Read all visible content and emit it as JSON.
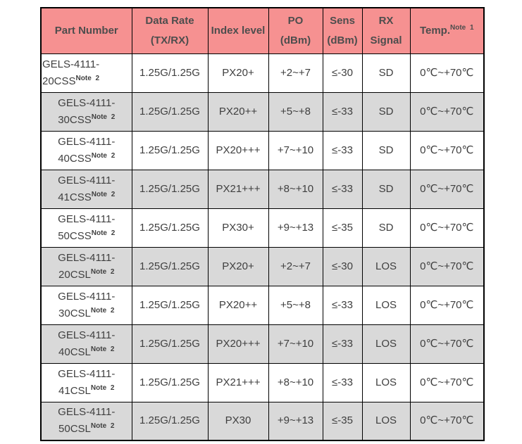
{
  "table": {
    "colors": {
      "header_bg": "#f69191",
      "header_text": "#4d4d4d",
      "row_bg": "#ffffff",
      "row_alt_bg": "#d9d9d9",
      "cell_text": "#3f3f3f",
      "grid_border": "#000000"
    },
    "columns": [
      {
        "key": "part",
        "line1": "Part Number",
        "line2": ""
      },
      {
        "key": "rate",
        "line1": "Data Rate",
        "line2": "(TX/RX)"
      },
      {
        "key": "index",
        "line1": "Index level",
        "line2": ""
      },
      {
        "key": "po",
        "line1": "PO",
        "line2": "(dBm)"
      },
      {
        "key": "sens",
        "line1": "Sens",
        "line2": "(dBm)"
      },
      {
        "key": "rx",
        "line1": "RX",
        "line2": "Signal"
      },
      {
        "key": "temp",
        "line1": "Temp.",
        "superscript": "Note 1"
      }
    ],
    "rows": [
      {
        "part_line1": "GELS-4111-",
        "part_line2": "20CSS",
        "part_superscript": "Note 2",
        "rate": "1.25G/1.25G",
        "index": "PX20+",
        "po": "+2~+7",
        "sens": "≤-30",
        "rx": "SD",
        "temp": "0℃~+70℃",
        "shaded": false,
        "part_align": "left"
      },
      {
        "part_line1": "GELS-4111-",
        "part_line2": "30CSS",
        "part_superscript": "Note 2",
        "rate": "1.25G/1.25G",
        "index": "PX20++",
        "po": "+5~+8",
        "sens": "≤-33",
        "rx": "SD",
        "temp": "0℃~+70℃",
        "shaded": true,
        "part_align": "center"
      },
      {
        "part_line1": "GELS-4111-",
        "part_line2": "40CSS",
        "part_superscript": "Note 2",
        "rate": "1.25G/1.25G",
        "index": "PX20+++",
        "po": "+7~+10",
        "sens": "≤-33",
        "rx": "SD",
        "temp": "0℃~+70℃",
        "shaded": false,
        "part_align": "center"
      },
      {
        "part_line1": "GELS-4111-",
        "part_line2": "41CSS",
        "part_superscript": "Note 2",
        "rate": "1.25G/1.25G",
        "index": "PX21+++",
        "po": "+8~+10",
        "sens": "≤-33",
        "rx": "SD",
        "temp": "0℃~+70℃",
        "shaded": true,
        "part_align": "center"
      },
      {
        "part_line1": "GELS-4111-",
        "part_line2": "50CSS",
        "part_superscript": "Note 2",
        "rate": "1.25G/1.25G",
        "index": "PX30+",
        "po": "+9~+13",
        "sens": "≤-35",
        "rx": "SD",
        "temp": "0℃~+70℃",
        "shaded": false,
        "part_align": "center"
      },
      {
        "part_line1": "GELS-4111-",
        "part_line2": "20CSL",
        "part_superscript": "Note 2",
        "rate": "1.25G/1.25G",
        "index": "PX20+",
        "po": "+2~+7",
        "sens": "≤-30",
        "rx": "LOS",
        "temp": "0℃~+70℃",
        "shaded": true,
        "part_align": "center"
      },
      {
        "part_line1": "GELS-4111-",
        "part_line2": "30CSL",
        "part_superscript": "Note 2",
        "rate": "1.25G/1.25G",
        "index": "PX20++",
        "po": "+5~+8",
        "sens": "≤-33",
        "rx": "LOS",
        "temp": "0℃~+70℃",
        "shaded": false,
        "part_align": "center"
      },
      {
        "part_line1": "GELS-4111-",
        "part_line2": "40CSL",
        "part_superscript": "Note 2",
        "rate": "1.25G/1.25G",
        "index": "PX20+++",
        "po": "+7~+10",
        "sens": "≤-33",
        "rx": "LOS",
        "temp": "0℃~+70℃",
        "shaded": true,
        "part_align": "center"
      },
      {
        "part_line1": "GELS-4111-",
        "part_line2": "41CSL",
        "part_superscript": "Note 2",
        "rate": "1.25G/1.25G",
        "index": "PX21+++",
        "po": "+8~+10",
        "sens": "≤-33",
        "rx": "LOS",
        "temp": "0℃~+70℃",
        "shaded": false,
        "part_align": "center"
      },
      {
        "part_line1": "GELS-4111-",
        "part_line2": "50CSL",
        "part_superscript": "Note 2",
        "rate": "1.25G/1.25G",
        "index": "PX30",
        "po": "+9~+13",
        "sens": "≤-35",
        "rx": "LOS",
        "temp": "0℃~+70℃",
        "shaded": true,
        "part_align": "center"
      }
    ]
  }
}
